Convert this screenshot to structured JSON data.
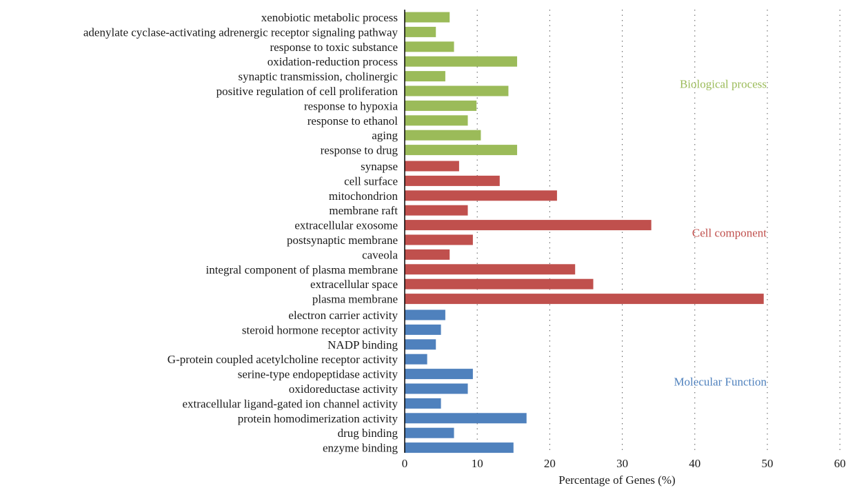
{
  "chart_data": {
    "type": "bar",
    "orientation": "horizontal",
    "xlabel": "Percentage of Genes (%)",
    "ylabel": "",
    "xlim": [
      0,
      60
    ],
    "xticks": [
      0,
      10,
      20,
      30,
      40,
      50,
      60
    ],
    "grid": "vertical dotted",
    "groups": [
      {
        "name": "Biological process",
        "color": "#9bbb59",
        "categories": [
          "xenobiotic metabolic process",
          "adenylate cyclase-activating adrenergic receptor signaling pathway",
          "response to toxic substance",
          "oxidation-reduction process",
          "synaptic transmission, cholinergic",
          "positive regulation of cell proliferation",
          "response to hypoxia",
          "response to ethanol",
          "aging",
          "response to drug"
        ],
        "values": [
          6.2,
          4.3,
          6.8,
          15.5,
          5.6,
          14.3,
          9.9,
          8.7,
          10.5,
          15.5
        ]
      },
      {
        "name": "Cell component",
        "color": "#c0504d",
        "categories": [
          "synapse",
          "cell surface",
          "mitochondrion",
          "membrane raft",
          "extracellular exosome",
          "postsynaptic membrane",
          "caveola",
          "integral component of plasma membrane",
          "extracellular space",
          "plasma membrane"
        ],
        "values": [
          7.5,
          13.1,
          21.0,
          8.7,
          34.0,
          9.4,
          6.2,
          23.5,
          26.0,
          49.5
        ]
      },
      {
        "name": "Molecular Function",
        "color": "#4f81bd",
        "categories": [
          "electron carrier activity",
          "steroid hormone receptor activity",
          "NADP binding",
          "G-protein coupled acetylcholine receptor activity",
          "serine-type endopeptidase activity",
          "oxidoreductase activity",
          "extracellular ligand-gated ion channel activity",
          "protein homodimerization activity",
          "drug binding",
          "enzyme binding"
        ],
        "values": [
          5.6,
          5.0,
          4.3,
          3.1,
          9.4,
          8.7,
          5.0,
          16.8,
          6.8,
          15.0
        ]
      }
    ]
  }
}
